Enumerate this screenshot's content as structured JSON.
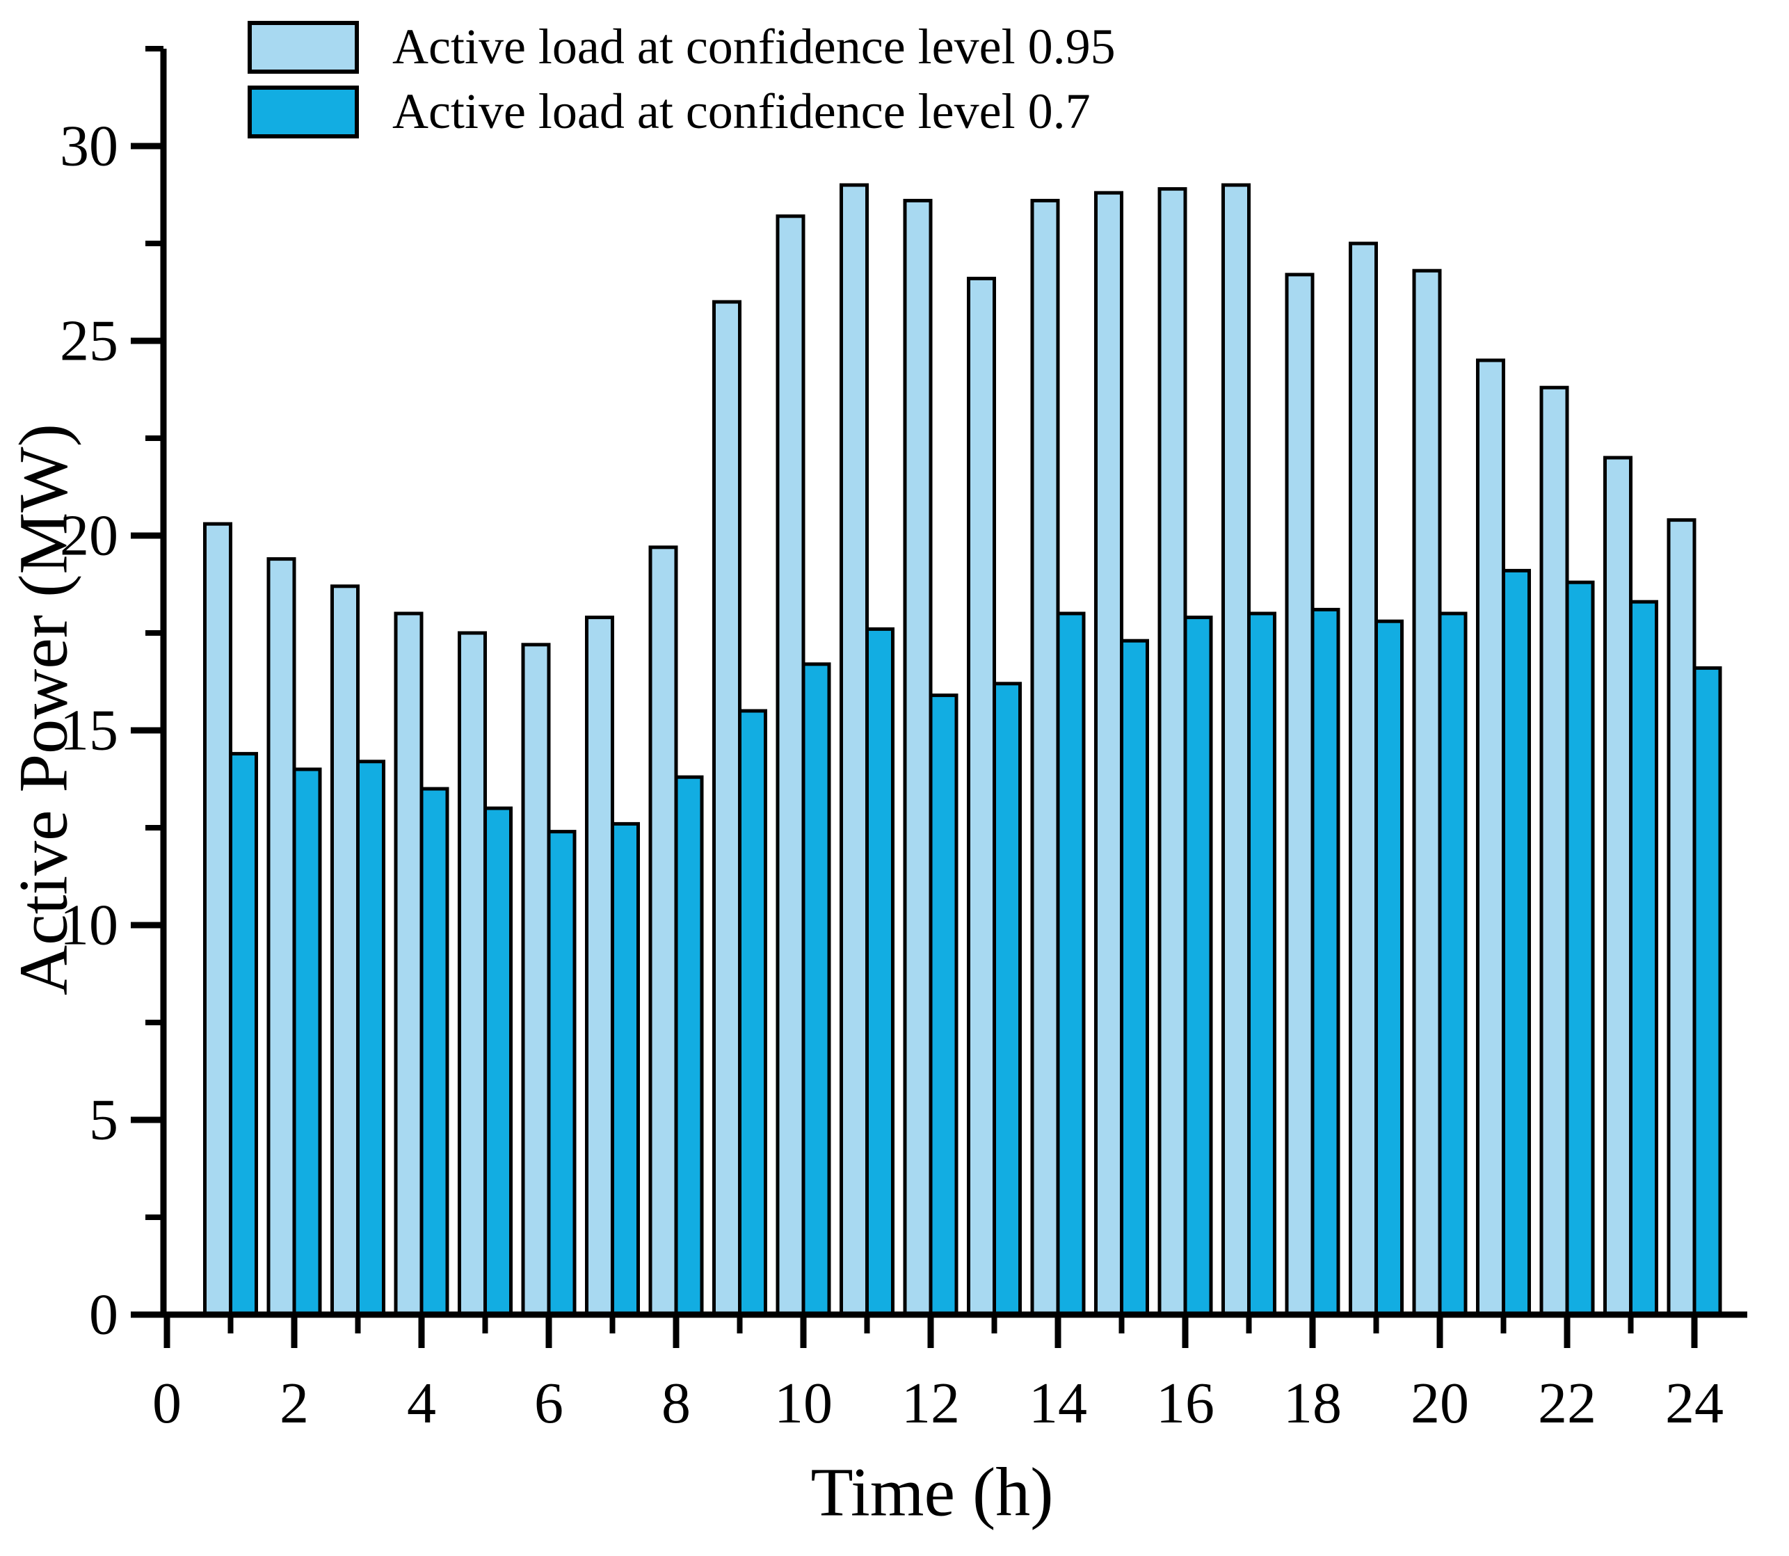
{
  "chart_data": {
    "type": "bar",
    "title": "",
    "xlabel": "Time (h)",
    "ylabel": "Active Power (MW)",
    "x": [
      1,
      2,
      3,
      4,
      5,
      6,
      7,
      8,
      9,
      10,
      11,
      12,
      13,
      14,
      15,
      16,
      17,
      18,
      19,
      20,
      21,
      22,
      23,
      24
    ],
    "series": [
      {
        "name": "Active load at confidence level 0.95",
        "color": "#a8d9f1",
        "values": [
          20.3,
          19.4,
          18.7,
          18.0,
          17.5,
          17.2,
          17.9,
          19.7,
          26.0,
          28.2,
          29.0,
          28.6,
          26.6,
          28.6,
          28.8,
          28.9,
          29.0,
          26.7,
          27.5,
          26.8,
          24.5,
          23.8,
          22.0,
          20.4
        ]
      },
      {
        "name": "Active load at confidence level 0.7",
        "color": "#12ade2",
        "values": [
          14.4,
          14.0,
          14.2,
          13.5,
          13.0,
          12.4,
          12.6,
          13.8,
          15.5,
          16.7,
          17.6,
          15.9,
          16.2,
          18.0,
          17.3,
          17.9,
          18.0,
          18.1,
          17.8,
          18.0,
          19.1,
          18.8,
          18.3,
          16.6
        ]
      }
    ],
    "bar_border_color": "#000000",
    "axis_color": "#000000",
    "xlim": [
      0,
      24.8
    ],
    "ylim": [
      0,
      32.5
    ],
    "x_tick_labels": [
      "0",
      "2",
      "4",
      "6",
      "8",
      "10",
      "12",
      "14",
      "16",
      "18",
      "20",
      "22",
      "24"
    ],
    "y_tick_labels": [
      "0",
      "5",
      "10",
      "15",
      "20",
      "25",
      "30"
    ],
    "x_minor_ticks": [
      1,
      3,
      5,
      7,
      9,
      11,
      13,
      15,
      17,
      19,
      21,
      23
    ],
    "y_minor_ticks": [
      2.5,
      7.5,
      12.5,
      17.5,
      22.5,
      27.5,
      32.5
    ],
    "grid": false,
    "legend_position": "upper-left-inside"
  }
}
